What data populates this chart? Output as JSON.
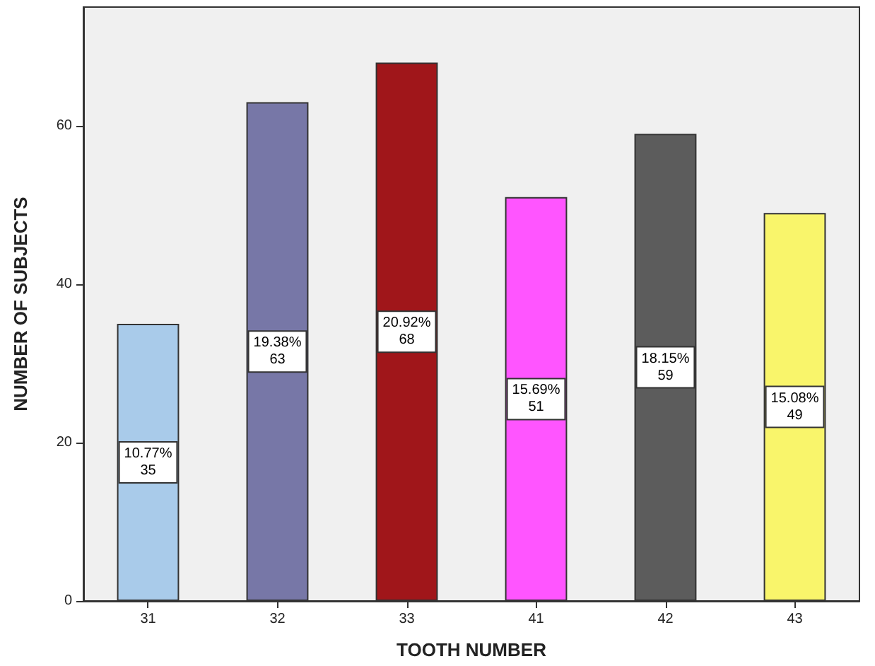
{
  "chart_data": {
    "type": "bar",
    "xlabel": "TOOTH NUMBER",
    "ylabel": "NUMBER OF SUBJECTS",
    "categories": [
      "31",
      "32",
      "33",
      "41",
      "42",
      "43"
    ],
    "values": [
      35,
      63,
      68,
      51,
      59,
      49
    ],
    "colors": [
      "#a9cbea",
      "#7777a7",
      "#a0161a",
      "#ff55ff",
      "#5c5c5c",
      "#f9f56b"
    ],
    "value_labels": [
      "10.77%\n35",
      "19.38%\n63",
      "20.92%\n68",
      "15.69%\n51",
      "18.15%\n59",
      "15.08%\n49"
    ],
    "ylim": [
      0,
      75
    ],
    "yticks": [
      0,
      20,
      40,
      60
    ],
    "grid": false
  }
}
